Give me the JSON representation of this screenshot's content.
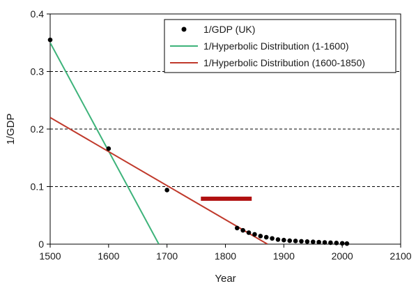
{
  "chart_data": {
    "type": "scatter",
    "title": "",
    "xlabel": "Year",
    "ylabel": "1/GDP",
    "xlim": [
      1500,
      2100
    ],
    "ylim": [
      0,
      0.4
    ],
    "x_ticks": [
      1500,
      1600,
      1700,
      1800,
      1900,
      2000,
      2100
    ],
    "y_ticks": [
      0,
      0.1,
      0.2,
      0.3,
      0.4
    ],
    "y_tick_labels": [
      "0",
      "0.1",
      "0.2",
      "0.3",
      "0.4"
    ],
    "grid": "dashed horizontal at 0.1, 0.2, 0.3",
    "legend_position": "top-right",
    "series": [
      {
        "name": "1/GDP (UK)",
        "kind": "points",
        "color": "#000000",
        "x": [
          1500,
          1600,
          1700,
          1820,
          1830,
          1840,
          1850,
          1860,
          1870,
          1880,
          1890,
          1900,
          1910,
          1920,
          1930,
          1940,
          1950,
          1960,
          1970,
          1980,
          1990,
          2000,
          2008
        ],
        "y": [
          0.355,
          0.166,
          0.094,
          0.028,
          0.024,
          0.02,
          0.017,
          0.014,
          0.012,
          0.01,
          0.008,
          0.007,
          0.006,
          0.0055,
          0.005,
          0.0045,
          0.004,
          0.0035,
          0.003,
          0.0025,
          0.002,
          0.0015,
          0.001
        ]
      },
      {
        "name": "1/Hyperbolic Distribution (1-1600)",
        "kind": "line",
        "color": "#3db37a",
        "x": [
          1500,
          1686
        ],
        "y": [
          0.35,
          0.0
        ]
      },
      {
        "name": "1/Hyperbolic Distribution (1600-1850)",
        "kind": "line",
        "color": "#c0392b",
        "x": [
          1500,
          1872
        ],
        "y": [
          0.22,
          0.0
        ]
      }
    ],
    "annotation_bar": {
      "color": "#b01010",
      "x": [
        1758,
        1845
      ],
      "y": 0.079
    }
  }
}
